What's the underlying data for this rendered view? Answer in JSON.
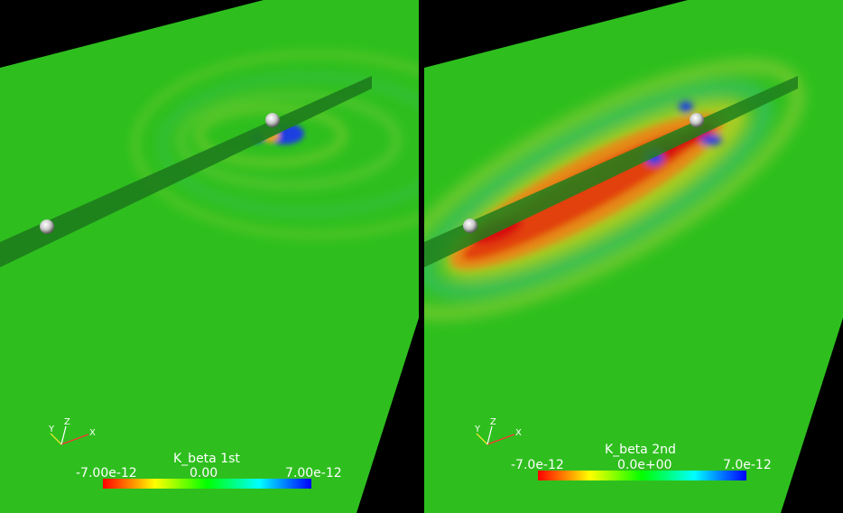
{
  "panels": [
    {
      "colorbar": {
        "title": "K_beta 1st",
        "min_label": "-7.00e-12",
        "mid_label": "0.00",
        "max_label": "7.00e-12",
        "colors": [
          "#ff0000",
          "#ffff00",
          "#00ff00",
          "#00ffff",
          "#0000ff"
        ]
      },
      "axes": {
        "x": "X",
        "y": "Y",
        "z": "Z"
      }
    },
    {
      "colorbar": {
        "title": "K_beta 2nd",
        "min_label": "-7.0e-12",
        "mid_label": "0.0e+00",
        "max_label": "7.0e-12",
        "colors": [
          "#ff0000",
          "#ffff00",
          "#00ff00",
          "#00ffff",
          "#0000ff"
        ]
      },
      "axes": {
        "x": "X",
        "y": "Y",
        "z": "Z"
      }
    }
  ],
  "colors": {
    "background": "#000000",
    "field_neutral": "#22bb22",
    "negative": "#dd1100",
    "positive": "#1133ee"
  }
}
